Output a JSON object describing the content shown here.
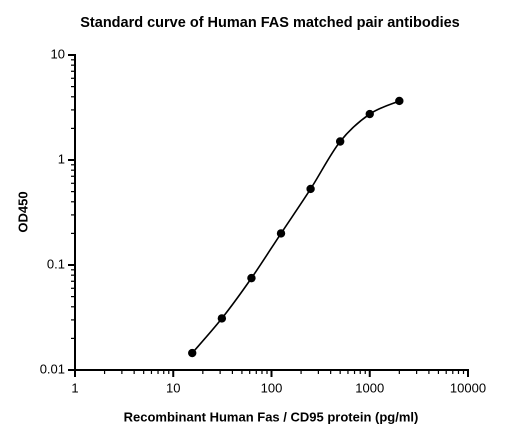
{
  "chart_data": {
    "type": "scatter",
    "title": "Standard curve of Human FAS matched pair antibodies",
    "x_label": "Recombinant Human Fas / CD95 protein (pg/ml)",
    "y_label": "OD450",
    "x_scale": "log",
    "y_scale": "log",
    "xlim": [
      1,
      10000
    ],
    "xticks": [
      1,
      10,
      100,
      1000,
      10000
    ],
    "ylim": [
      0.01,
      10
    ],
    "yticks": [
      0.01,
      0.1,
      1,
      10
    ],
    "minor_ticks": true,
    "series": [
      {
        "color": "#000000",
        "line": "smooth",
        "x": [
          15.6,
          31.25,
          62.5,
          125,
          250,
          500,
          1000,
          2000
        ],
        "values": [
          0.0145,
          0.031,
          0.075,
          0.2,
          0.53,
          1.5,
          2.74,
          3.65
        ]
      }
    ]
  }
}
